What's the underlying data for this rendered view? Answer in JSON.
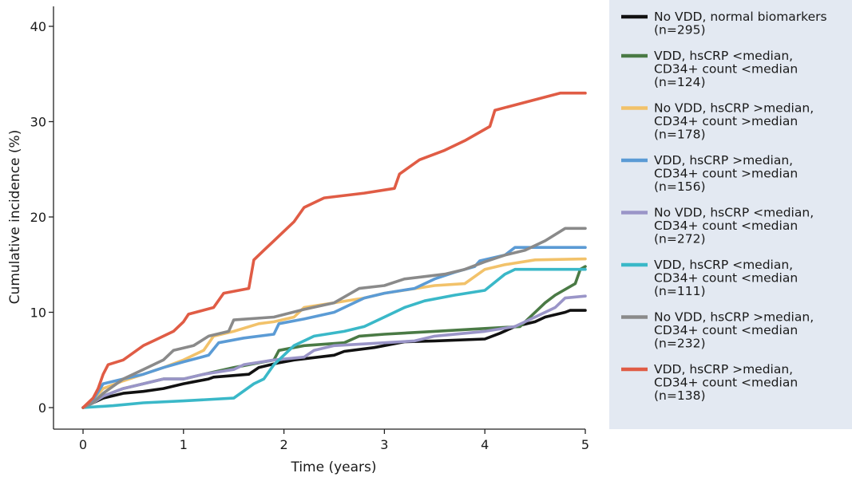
{
  "chart_data": {
    "type": "line",
    "subtype": "step",
    "xlabel": "Time (years)",
    "ylabel": "Cumulative incidence (%)",
    "xlim": [
      0,
      5
    ],
    "ylim": [
      -2,
      42
    ],
    "xticks": [
      "0",
      "1",
      "2",
      "3",
      "4",
      "5"
    ],
    "yticks": [
      "0",
      "10",
      "20",
      "30",
      "40"
    ],
    "grid": false,
    "legend_position": "right",
    "series": [
      {
        "name": "No VDD, normal biomarkers",
        "size_label": "(n=295)",
        "color": "#111111",
        "points": [
          [
            0,
            0
          ],
          [
            0.1,
            0.5
          ],
          [
            0.2,
            1.0
          ],
          [
            0.4,
            1.5
          ],
          [
            0.6,
            1.7
          ],
          [
            0.8,
            2.0
          ],
          [
            1.0,
            2.5
          ],
          [
            1.1,
            2.7
          ],
          [
            1.25,
            3.0
          ],
          [
            1.3,
            3.2
          ],
          [
            1.65,
            3.5
          ],
          [
            1.75,
            4.2
          ],
          [
            1.95,
            4.7
          ],
          [
            2.1,
            5.0
          ],
          [
            2.5,
            5.5
          ],
          [
            2.6,
            5.9
          ],
          [
            2.9,
            6.3
          ],
          [
            3.2,
            6.9
          ],
          [
            3.5,
            7.0
          ],
          [
            4.0,
            7.2
          ],
          [
            4.15,
            7.8
          ],
          [
            4.3,
            8.5
          ],
          [
            4.5,
            9.0
          ],
          [
            4.6,
            9.5
          ],
          [
            4.8,
            10.0
          ],
          [
            4.85,
            10.2
          ],
          [
            5.0,
            10.2
          ]
        ]
      },
      {
        "name": "VDD, hsCRP <median, CD34+ count <median",
        "size_label": "(n=124)",
        "color": "#4a7a45",
        "points": [
          [
            0,
            0
          ],
          [
            0.1,
            0.5
          ],
          [
            0.2,
            1.2
          ],
          [
            0.4,
            2.0
          ],
          [
            0.6,
            2.5
          ],
          [
            0.8,
            3.0
          ],
          [
            1.0,
            3.0
          ],
          [
            1.2,
            3.5
          ],
          [
            1.5,
            4.2
          ],
          [
            1.7,
            4.6
          ],
          [
            1.9,
            5.0
          ],
          [
            1.95,
            6.0
          ],
          [
            2.2,
            6.5
          ],
          [
            2.6,
            6.8
          ],
          [
            2.75,
            7.5
          ],
          [
            3.0,
            7.7
          ],
          [
            3.5,
            8.0
          ],
          [
            4.0,
            8.3
          ],
          [
            4.35,
            8.5
          ],
          [
            4.45,
            9.5
          ],
          [
            4.6,
            11.0
          ],
          [
            4.7,
            11.8
          ],
          [
            4.9,
            13.0
          ],
          [
            4.95,
            14.5
          ],
          [
            5.0,
            14.8
          ]
        ]
      },
      {
        "name": "No VDD, hsCRP >median, CD34+ count >median",
        "size_label": "(n=178)",
        "color": "#f2c26a",
        "points": [
          [
            0,
            0
          ],
          [
            0.1,
            0.8
          ],
          [
            0.2,
            2.0
          ],
          [
            0.4,
            2.8
          ],
          [
            0.6,
            3.5
          ],
          [
            0.8,
            4.2
          ],
          [
            1.0,
            5.0
          ],
          [
            1.2,
            6.0
          ],
          [
            1.3,
            7.5
          ],
          [
            1.5,
            8.0
          ],
          [
            1.75,
            8.8
          ],
          [
            1.9,
            9.0
          ],
          [
            2.1,
            9.5
          ],
          [
            2.2,
            10.5
          ],
          [
            2.5,
            11.0
          ],
          [
            2.8,
            11.5
          ],
          [
            3.0,
            12.0
          ],
          [
            3.5,
            12.8
          ],
          [
            3.8,
            13.0
          ],
          [
            4.0,
            14.5
          ],
          [
            4.2,
            15.0
          ],
          [
            4.5,
            15.5
          ],
          [
            5.0,
            15.6
          ]
        ]
      },
      {
        "name": "VDD, hsCRP >median, CD34+ count >median",
        "size_label": "(n=156)",
        "color": "#5b9bd5",
        "points": [
          [
            0,
            0
          ],
          [
            0.1,
            0.8
          ],
          [
            0.2,
            2.5
          ],
          [
            0.4,
            3.0
          ],
          [
            0.6,
            3.5
          ],
          [
            0.8,
            4.2
          ],
          [
            1.0,
            4.8
          ],
          [
            1.25,
            5.5
          ],
          [
            1.35,
            6.8
          ],
          [
            1.6,
            7.3
          ],
          [
            1.9,
            7.7
          ],
          [
            1.95,
            8.8
          ],
          [
            2.2,
            9.3
          ],
          [
            2.5,
            10.0
          ],
          [
            2.8,
            11.5
          ],
          [
            3.0,
            12.0
          ],
          [
            3.3,
            12.5
          ],
          [
            3.5,
            13.5
          ],
          [
            3.7,
            14.2
          ],
          [
            3.9,
            14.8
          ],
          [
            3.95,
            15.4
          ],
          [
            4.2,
            16.0
          ],
          [
            4.3,
            16.8
          ],
          [
            5.0,
            16.8
          ]
        ]
      },
      {
        "name": "No VDD, hsCRP <median, CD34+ count <median",
        "size_label": "(n=272)",
        "color": "#9a95c8",
        "points": [
          [
            0,
            0
          ],
          [
            0.1,
            0.5
          ],
          [
            0.2,
            1.2
          ],
          [
            0.4,
            2.0
          ],
          [
            0.6,
            2.5
          ],
          [
            0.8,
            3.0
          ],
          [
            1.0,
            3.0
          ],
          [
            1.2,
            3.5
          ],
          [
            1.5,
            4.0
          ],
          [
            1.6,
            4.5
          ],
          [
            1.9,
            5.0
          ],
          [
            2.2,
            5.3
          ],
          [
            2.3,
            6.0
          ],
          [
            2.5,
            6.5
          ],
          [
            3.0,
            6.8
          ],
          [
            3.3,
            7.0
          ],
          [
            3.5,
            7.5
          ],
          [
            4.0,
            8.0
          ],
          [
            4.3,
            8.5
          ],
          [
            4.5,
            9.5
          ],
          [
            4.7,
            10.5
          ],
          [
            4.8,
            11.5
          ],
          [
            5.0,
            11.7
          ]
        ]
      },
      {
        "name": "VDD, hsCRP <median, CD34+ count <median",
        "size_label": "(n=111)",
        "color": "#3ab8c8",
        "points": [
          [
            0,
            0
          ],
          [
            0.3,
            0.2
          ],
          [
            0.6,
            0.5
          ],
          [
            1.0,
            0.7
          ],
          [
            1.5,
            1.0
          ],
          [
            1.7,
            2.5
          ],
          [
            1.8,
            3.0
          ],
          [
            1.9,
            4.5
          ],
          [
            2.1,
            6.5
          ],
          [
            2.3,
            7.5
          ],
          [
            2.6,
            8.0
          ],
          [
            2.8,
            8.5
          ],
          [
            3.0,
            9.5
          ],
          [
            3.2,
            10.5
          ],
          [
            3.4,
            11.2
          ],
          [
            3.7,
            11.8
          ],
          [
            4.0,
            12.3
          ],
          [
            4.2,
            14.0
          ],
          [
            4.3,
            14.5
          ],
          [
            5.0,
            14.5
          ]
        ]
      },
      {
        "name": "No VDD, hsCRP >median, CD34+ count <median",
        "size_label": "(n=232)",
        "color": "#8a8a8a",
        "points": [
          [
            0,
            0
          ],
          [
            0.1,
            0.5
          ],
          [
            0.2,
            1.5
          ],
          [
            0.4,
            3.0
          ],
          [
            0.6,
            4.0
          ],
          [
            0.8,
            5.0
          ],
          [
            0.9,
            6.0
          ],
          [
            1.1,
            6.5
          ],
          [
            1.25,
            7.5
          ],
          [
            1.45,
            8.0
          ],
          [
            1.5,
            9.2
          ],
          [
            1.9,
            9.5
          ],
          [
            2.2,
            10.3
          ],
          [
            2.5,
            11.0
          ],
          [
            2.75,
            12.5
          ],
          [
            3.0,
            12.8
          ],
          [
            3.2,
            13.5
          ],
          [
            3.6,
            14.0
          ],
          [
            3.8,
            14.5
          ],
          [
            4.0,
            15.3
          ],
          [
            4.2,
            16.0
          ],
          [
            4.4,
            16.5
          ],
          [
            4.6,
            17.5
          ],
          [
            4.8,
            18.8
          ],
          [
            5.0,
            18.8
          ]
        ]
      },
      {
        "name": "VDD, hsCRP >median, CD34+ count <median",
        "size_label": "(n=138)",
        "color": "#e05c45",
        "points": [
          [
            0,
            0
          ],
          [
            0.1,
            1.0
          ],
          [
            0.15,
            2.0
          ],
          [
            0.2,
            3.5
          ],
          [
            0.25,
            4.5
          ],
          [
            0.4,
            5.0
          ],
          [
            0.6,
            6.5
          ],
          [
            0.7,
            7.0
          ],
          [
            0.9,
            8.0
          ],
          [
            1.0,
            9.0
          ],
          [
            1.05,
            9.8
          ],
          [
            1.3,
            10.5
          ],
          [
            1.4,
            12.0
          ],
          [
            1.65,
            12.5
          ],
          [
            1.7,
            15.5
          ],
          [
            1.8,
            16.5
          ],
          [
            1.9,
            17.5
          ],
          [
            2.0,
            18.5
          ],
          [
            2.1,
            19.5
          ],
          [
            2.2,
            21.0
          ],
          [
            2.4,
            22.0
          ],
          [
            2.8,
            22.5
          ],
          [
            3.1,
            23.0
          ],
          [
            3.15,
            24.5
          ],
          [
            3.35,
            26.0
          ],
          [
            3.6,
            27.0
          ],
          [
            3.8,
            28.0
          ],
          [
            4.05,
            29.5
          ],
          [
            4.1,
            31.2
          ],
          [
            4.5,
            32.3
          ],
          [
            4.75,
            33.0
          ],
          [
            5.0,
            33.0
          ]
        ]
      }
    ]
  }
}
